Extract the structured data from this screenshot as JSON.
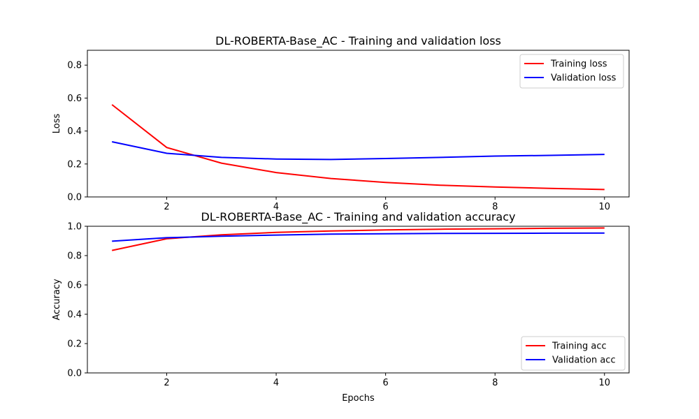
{
  "chart_data": [
    {
      "type": "line",
      "title": "DL-ROBERTA-Base_AC - Training and validation loss",
      "xlabel": "",
      "ylabel": "Loss",
      "x": [
        1,
        2,
        3,
        4,
        5,
        6,
        7,
        8,
        9,
        10
      ],
      "xlim": [
        0.55,
        10.45
      ],
      "ylim": [
        0,
        0.89
      ],
      "xticks": [
        "2",
        "4",
        "6",
        "8",
        "10"
      ],
      "yticks": [
        "0.0",
        "0.2",
        "0.4",
        "0.6",
        "0.8"
      ],
      "legend": "top-right",
      "series": [
        {
          "name": "Training loss",
          "color": "#ff0000",
          "values": [
            0.56,
            0.3,
            0.205,
            0.148,
            0.112,
            0.088,
            0.071,
            0.06,
            0.052,
            0.045
          ]
        },
        {
          "name": "Validation loss",
          "color": "#0000ff",
          "values": [
            0.335,
            0.265,
            0.24,
            0.23,
            0.227,
            0.233,
            0.24,
            0.248,
            0.252,
            0.258
          ]
        }
      ]
    },
    {
      "type": "line",
      "title": "DL-ROBERTA-Base_AC - Training and validation accuracy",
      "xlabel": "Epochs",
      "ylabel": "Accuracy",
      "x": [
        1,
        2,
        3,
        4,
        5,
        6,
        7,
        8,
        9,
        10
      ],
      "xlim": [
        0.55,
        10.45
      ],
      "ylim": [
        0,
        1.0
      ],
      "xticks": [
        "2",
        "4",
        "6",
        "8",
        "10"
      ],
      "yticks": [
        "0.0",
        "0.2",
        "0.4",
        "0.6",
        "0.8",
        "1.0"
      ],
      "legend": "bottom-right",
      "series": [
        {
          "name": "Training acc",
          "color": "#ff0000",
          "values": [
            0.835,
            0.915,
            0.942,
            0.958,
            0.968,
            0.975,
            0.98,
            0.983,
            0.986,
            0.988
          ]
        },
        {
          "name": "Validation acc",
          "color": "#0000ff",
          "values": [
            0.898,
            0.922,
            0.932,
            0.94,
            0.946,
            0.949,
            0.951,
            0.952,
            0.953,
            0.954
          ]
        }
      ]
    }
  ]
}
